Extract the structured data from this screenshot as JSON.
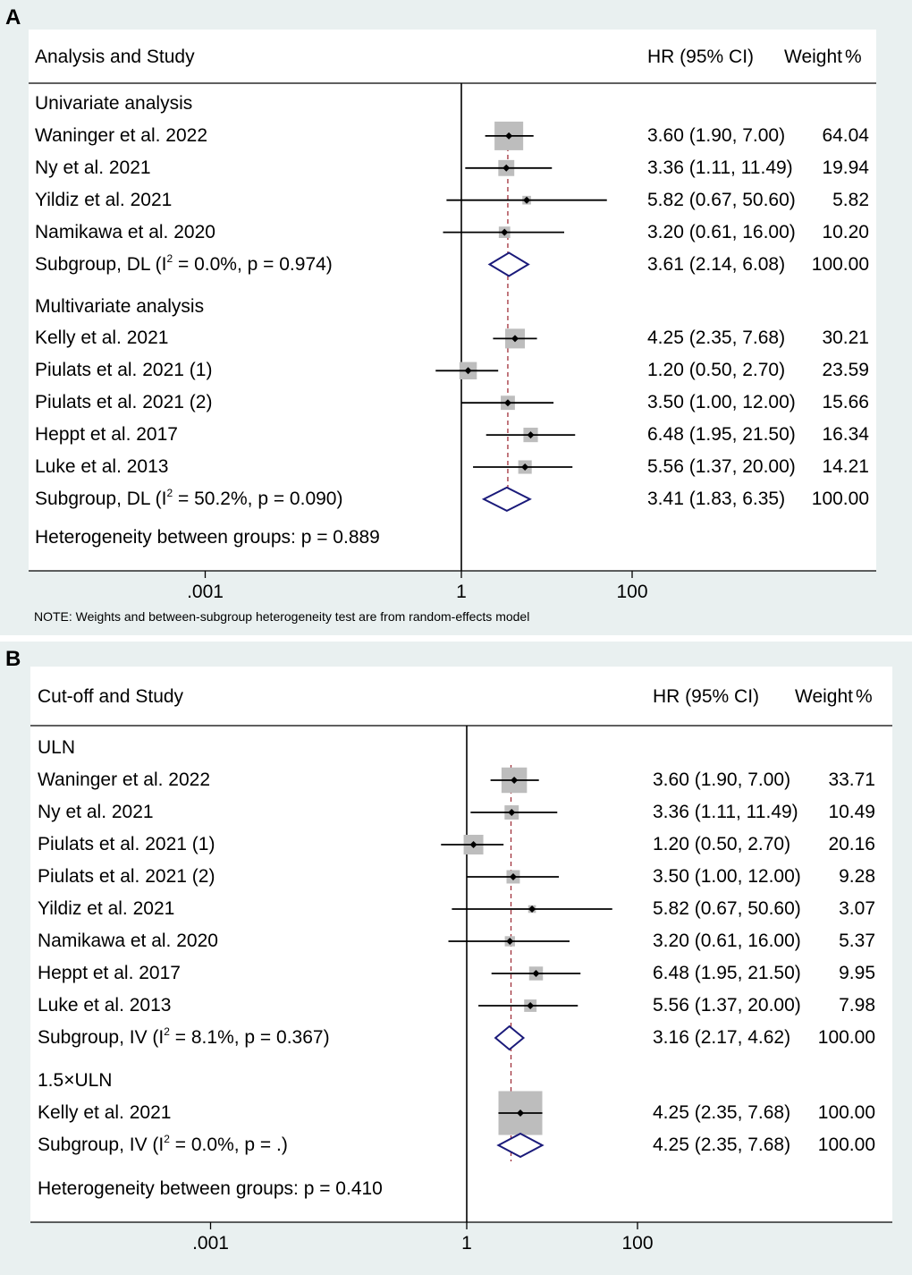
{
  "panels": {
    "A": {
      "letter": "A",
      "header": {
        "study_col": "Analysis and Study",
        "hr_col": "HR (95% CI)",
        "weight_col": "Weight",
        "pct": "%"
      },
      "footer_note": "NOTE: Weights and between-subgroup heterogeneity test are from random-effects model",
      "heterogeneity": "Heterogeneity between groups: p = 0.889",
      "axis_ticks": [
        ".001",
        "1",
        "100"
      ]
    },
    "B": {
      "letter": "B",
      "header": {
        "study_col": "Cut-off and Study",
        "hr_col": "HR (95% CI)",
        "weight_col": "Weight",
        "pct": "%"
      },
      "heterogeneity": "Heterogeneity between groups: p = 0.410",
      "axis_ticks": [
        ".001",
        "1",
        "100"
      ]
    }
  },
  "chart_data": [
    {
      "type": "forest",
      "panel": "A",
      "xscale": "log",
      "x_ticks": [
        0.001,
        1,
        100
      ],
      "null_line": 1,
      "overall_line": 3.5,
      "groups": [
        {
          "name": "Univariate analysis",
          "studies": [
            {
              "label": "Waninger et al. 2022",
              "hr": 3.6,
              "lo": 1.9,
              "hi": 7.0,
              "weight": 64.04,
              "text": "3.60 (1.90, 7.00)",
              "wtext": "64.04"
            },
            {
              "label": "Ny et al. 2021",
              "hr": 3.36,
              "lo": 1.11,
              "hi": 11.49,
              "weight": 19.94,
              "text": "3.36 (1.11, 11.49)",
              "wtext": "19.94"
            },
            {
              "label": "Yildiz et al. 2021",
              "hr": 5.82,
              "lo": 0.67,
              "hi": 50.6,
              "weight": 5.82,
              "text": "5.82 (0.67, 50.60)",
              "wtext": "5.82"
            },
            {
              "label": "Namikawa et al. 2020",
              "hr": 3.2,
              "lo": 0.61,
              "hi": 16.0,
              "weight": 10.2,
              "text": "3.20 (0.61, 16.00)",
              "wtext": "10.20"
            }
          ],
          "subgroup": {
            "prefix": "Subgroup, DL (I",
            "sup": "2",
            "suffix": " = 0.0%, p = 0.974)",
            "hr": 3.61,
            "lo": 2.14,
            "hi": 6.08,
            "text": "3.61 (2.14, 6.08)",
            "wtext": "100.00"
          }
        },
        {
          "name": "Multivariate analysis",
          "studies": [
            {
              "label": "Kelly et al. 2021",
              "hr": 4.25,
              "lo": 2.35,
              "hi": 7.68,
              "weight": 30.21,
              "text": "4.25 (2.35, 7.68)",
              "wtext": "30.21"
            },
            {
              "label": "Piulats et al. 2021 (1)",
              "hr": 1.2,
              "lo": 0.5,
              "hi": 2.7,
              "weight": 23.59,
              "text": "1.20 (0.50, 2.70)",
              "wtext": "23.59"
            },
            {
              "label": "Piulats et al. 2021 (2)",
              "hr": 3.5,
              "lo": 1.0,
              "hi": 12.0,
              "weight": 15.66,
              "text": "3.50 (1.00, 12.00)",
              "wtext": "15.66"
            },
            {
              "label": "Heppt et al. 2017",
              "hr": 6.48,
              "lo": 1.95,
              "hi": 21.5,
              "weight": 16.34,
              "text": "6.48 (1.95, 21.50)",
              "wtext": "16.34"
            },
            {
              "label": "Luke et al. 2013",
              "hr": 5.56,
              "lo": 1.37,
              "hi": 20.0,
              "weight": 14.21,
              "text": "5.56 (1.37, 20.00)",
              "wtext": "14.21"
            }
          ],
          "subgroup": {
            "prefix": "Subgroup, DL (I",
            "sup": "2",
            "suffix": " = 50.2%, p = 0.090)",
            "hr": 3.41,
            "lo": 1.83,
            "hi": 6.35,
            "text": "3.41 (1.83, 6.35)",
            "wtext": "100.00"
          }
        }
      ]
    },
    {
      "type": "forest",
      "panel": "B",
      "xscale": "log",
      "x_ticks": [
        0.001,
        1,
        100
      ],
      "null_line": 1,
      "overall_line": 3.3,
      "groups": [
        {
          "name": "ULN",
          "studies": [
            {
              "label": "Waninger et al. 2022",
              "hr": 3.6,
              "lo": 1.9,
              "hi": 7.0,
              "weight": 33.71,
              "text": "3.60 (1.90, 7.00)",
              "wtext": "33.71"
            },
            {
              "label": "Ny et al. 2021",
              "hr": 3.36,
              "lo": 1.11,
              "hi": 11.49,
              "weight": 10.49,
              "text": "3.36 (1.11, 11.49)",
              "wtext": "10.49"
            },
            {
              "label": "Piulats et al. 2021 (1)",
              "hr": 1.2,
              "lo": 0.5,
              "hi": 2.7,
              "weight": 20.16,
              "text": "1.20 (0.50, 2.70)",
              "wtext": "20.16"
            },
            {
              "label": "Piulats et al. 2021 (2)",
              "hr": 3.5,
              "lo": 1.0,
              "hi": 12.0,
              "weight": 9.28,
              "text": "3.50 (1.00, 12.00)",
              "wtext": "9.28"
            },
            {
              "label": "Yildiz et al. 2021",
              "hr": 5.82,
              "lo": 0.67,
              "hi": 50.6,
              "weight": 3.07,
              "text": "5.82 (0.67, 50.60)",
              "wtext": "3.07"
            },
            {
              "label": "Namikawa et al. 2020",
              "hr": 3.2,
              "lo": 0.61,
              "hi": 16.0,
              "weight": 5.37,
              "text": "3.20 (0.61, 16.00)",
              "wtext": "5.37"
            },
            {
              "label": "Heppt et al. 2017",
              "hr": 6.48,
              "lo": 1.95,
              "hi": 21.5,
              "weight": 9.95,
              "text": "6.48 (1.95, 21.50)",
              "wtext": "9.95"
            },
            {
              "label": "Luke et al. 2013",
              "hr": 5.56,
              "lo": 1.37,
              "hi": 20.0,
              "weight": 7.98,
              "text": "5.56 (1.37, 20.00)",
              "wtext": "7.98"
            }
          ],
          "subgroup": {
            "prefix": "Subgroup, IV (I",
            "sup": "2",
            "suffix": " = 8.1%, p = 0.367)",
            "hr": 3.16,
            "lo": 2.17,
            "hi": 4.62,
            "text": "3.16 (2.17, 4.62)",
            "wtext": "100.00"
          }
        },
        {
          "name": "1.5×ULN",
          "studies": [
            {
              "label": "Kelly et al. 2021",
              "hr": 4.25,
              "lo": 2.35,
              "hi": 7.68,
              "weight": 100.0,
              "text": "4.25 (2.35, 7.68)",
              "wtext": "100.00"
            }
          ],
          "subgroup": {
            "prefix": "Subgroup, IV (I",
            "sup": "2",
            "suffix": " = 0.0%, p = .)",
            "hr": 4.25,
            "lo": 2.35,
            "hi": 7.68,
            "text": "4.25 (2.35, 7.68)",
            "wtext": "100.00"
          }
        }
      ]
    }
  ]
}
